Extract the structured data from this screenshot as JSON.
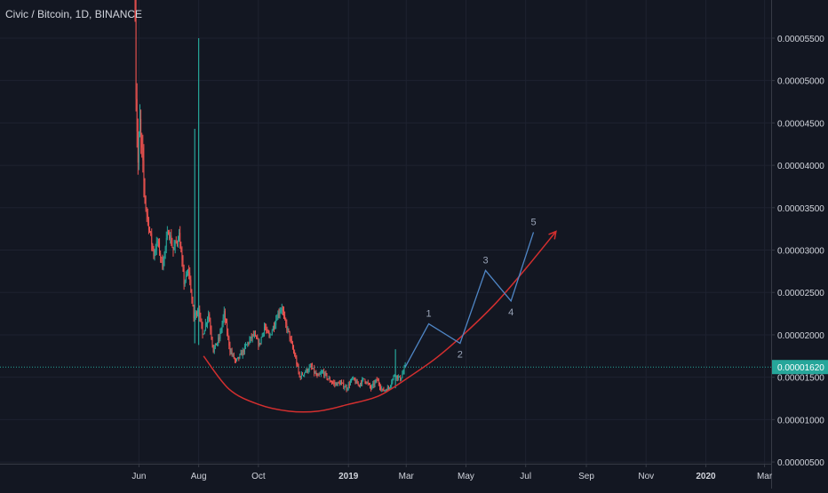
{
  "chart_data": {
    "type": "candlestick",
    "title": "Civic / Bitcoin, 1D, BINANCE",
    "price_axis": {
      "ticks": [
        "0.00005500",
        "0.00005000",
        "0.00004500",
        "0.00004000",
        "0.00003500",
        "0.00003000",
        "0.00002500",
        "0.00002000",
        "0.00001500",
        "0.00001000",
        "0.00000500"
      ],
      "range": [
        4.8e-06,
        5.95e-05
      ],
      "current_price_label": "0.00001620",
      "current_price": 1.62e-05
    },
    "time_axis": {
      "labels": [
        "Jun",
        "Aug",
        "Oct",
        "2019",
        "Mar",
        "May",
        "Jul",
        "Sep",
        "Nov",
        "2020",
        "Mar"
      ]
    },
    "price_path": [
      [
        "2018-05-28",
        6e-05
      ],
      [
        "2018-05-29",
        4.88e-05
      ],
      [
        "2018-05-31",
        4.02e-05
      ],
      [
        "2018-06-02",
        4.48e-05
      ],
      [
        "2018-06-05",
        3.94e-05
      ],
      [
        "2018-06-08",
        3.5e-05
      ],
      [
        "2018-06-12",
        3.22e-05
      ],
      [
        "2018-06-16",
        2.95e-05
      ],
      [
        "2018-06-20",
        3.1e-05
      ],
      [
        "2018-06-25",
        2.82e-05
      ],
      [
        "2018-07-01",
        3.24e-05
      ],
      [
        "2018-07-06",
        3e-05
      ],
      [
        "2018-07-12",
        3.18e-05
      ],
      [
        "2018-07-17",
        2.62e-05
      ],
      [
        "2018-07-22",
        2.75e-05
      ],
      [
        "2018-07-27",
        2.2e-05
      ],
      [
        "2018-08-01",
        2.32e-05
      ],
      [
        "2018-08-05",
        2e-05
      ],
      [
        "2018-08-11",
        2.25e-05
      ],
      [
        "2018-08-16",
        1.82e-05
      ],
      [
        "2018-08-22",
        1.96e-05
      ],
      [
        "2018-08-27",
        2.25e-05
      ],
      [
        "2018-09-02",
        1.82e-05
      ],
      [
        "2018-09-08",
        1.68e-05
      ],
      [
        "2018-09-14",
        1.78e-05
      ],
      [
        "2018-09-20",
        1.9e-05
      ],
      [
        "2018-09-26",
        2e-05
      ],
      [
        "2018-10-02",
        1.88e-05
      ],
      [
        "2018-10-07",
        2.1e-05
      ],
      [
        "2018-10-12",
        1.97e-05
      ],
      [
        "2018-10-17",
        2.12e-05
      ],
      [
        "2018-10-21",
        2.25e-05
      ],
      [
        "2018-10-25",
        2.33e-05
      ],
      [
        "2018-10-28",
        2.15e-05
      ],
      [
        "2018-11-01",
        2.02e-05
      ],
      [
        "2018-11-04",
        1.88e-05
      ],
      [
        "2018-11-08",
        1.72e-05
      ],
      [
        "2018-11-12",
        1.5e-05
      ],
      [
        "2018-11-18",
        1.57e-05
      ],
      [
        "2018-11-24",
        1.62e-05
      ],
      [
        "2018-11-30",
        1.5e-05
      ],
      [
        "2018-12-06",
        1.56e-05
      ],
      [
        "2018-12-12",
        1.47e-05
      ],
      [
        "2018-12-18",
        1.42e-05
      ],
      [
        "2018-12-24",
        1.43e-05
      ],
      [
        "2018-12-30",
        1.37e-05
      ],
      [
        "2019-01-05",
        1.48e-05
      ],
      [
        "2019-01-11",
        1.41e-05
      ],
      [
        "2019-01-17",
        1.48e-05
      ],
      [
        "2019-01-24",
        1.37e-05
      ],
      [
        "2019-01-30",
        1.47e-05
      ],
      [
        "2019-02-05",
        1.34e-05
      ],
      [
        "2019-02-11",
        1.37e-05
      ],
      [
        "2019-02-17",
        1.53e-05
      ],
      [
        "2019-02-23",
        1.48e-05
      ],
      [
        "2019-02-28",
        1.62e-05
      ]
    ],
    "spikes": [
      {
        "date": "2018-07-28",
        "high": 4.43e-05,
        "low": 1.9e-05,
        "color": "#26a69a"
      },
      {
        "date": "2018-08-01",
        "high": 5.5e-05,
        "low": 1.88e-05,
        "color": "#26a69a"
      },
      {
        "date": "2019-02-18",
        "high": 1.83e-05,
        "low": 1.37e-05,
        "color": "#26a69a"
      }
    ],
    "drawings": {
      "curve_points": [
        [
          "2018-08-06",
          1.75e-05
        ],
        [
          "2018-09-01",
          1.36e-05
        ],
        [
          "2018-10-01",
          1.18e-05
        ],
        [
          "2018-11-01",
          1.1e-05
        ],
        [
          "2018-12-01",
          1.1e-05
        ],
        [
          "2019-01-01",
          1.18e-05
        ],
        [
          "2019-02-01",
          1.28e-05
        ],
        [
          "2019-03-01",
          1.48e-05
        ],
        [
          "2019-04-01",
          1.73e-05
        ],
        [
          "2019-05-01",
          2.03e-05
        ],
        [
          "2019-06-01",
          2.38e-05
        ],
        [
          "2019-07-01",
          2.78e-05
        ],
        [
          "2019-08-01",
          3.22e-05
        ]
      ],
      "curve_color": "#d32f2f",
      "wave_points": [
        [
          "2019-02-28",
          1.62e-05
        ],
        [
          "2019-03-24",
          2.13e-05
        ],
        [
          "2019-04-25",
          1.9e-05
        ],
        [
          "2019-05-21",
          2.76e-05
        ],
        [
          "2019-06-16",
          2.4e-05
        ],
        [
          "2019-07-09",
          3.21e-05
        ]
      ],
      "wave_color": "#4f86c6",
      "wave_labels": [
        {
          "text": "1",
          "date": "2019-03-24",
          "price": 2.13e-05,
          "pos": "above"
        },
        {
          "text": "2",
          "date": "2019-04-25",
          "price": 1.9e-05,
          "pos": "below"
        },
        {
          "text": "3",
          "date": "2019-05-21",
          "price": 2.76e-05,
          "pos": "above"
        },
        {
          "text": "4",
          "date": "2019-06-16",
          "price": 2.4e-05,
          "pos": "below"
        },
        {
          "text": "5",
          "date": "2019-07-09",
          "price": 3.21e-05,
          "pos": "above"
        }
      ]
    },
    "colors": {
      "background": "#131722",
      "up": "#26a69a",
      "down": "#ef5350",
      "axis_text": "#d1d4dc",
      "price_line": "#26a69a",
      "grid": "#1e2230"
    }
  }
}
